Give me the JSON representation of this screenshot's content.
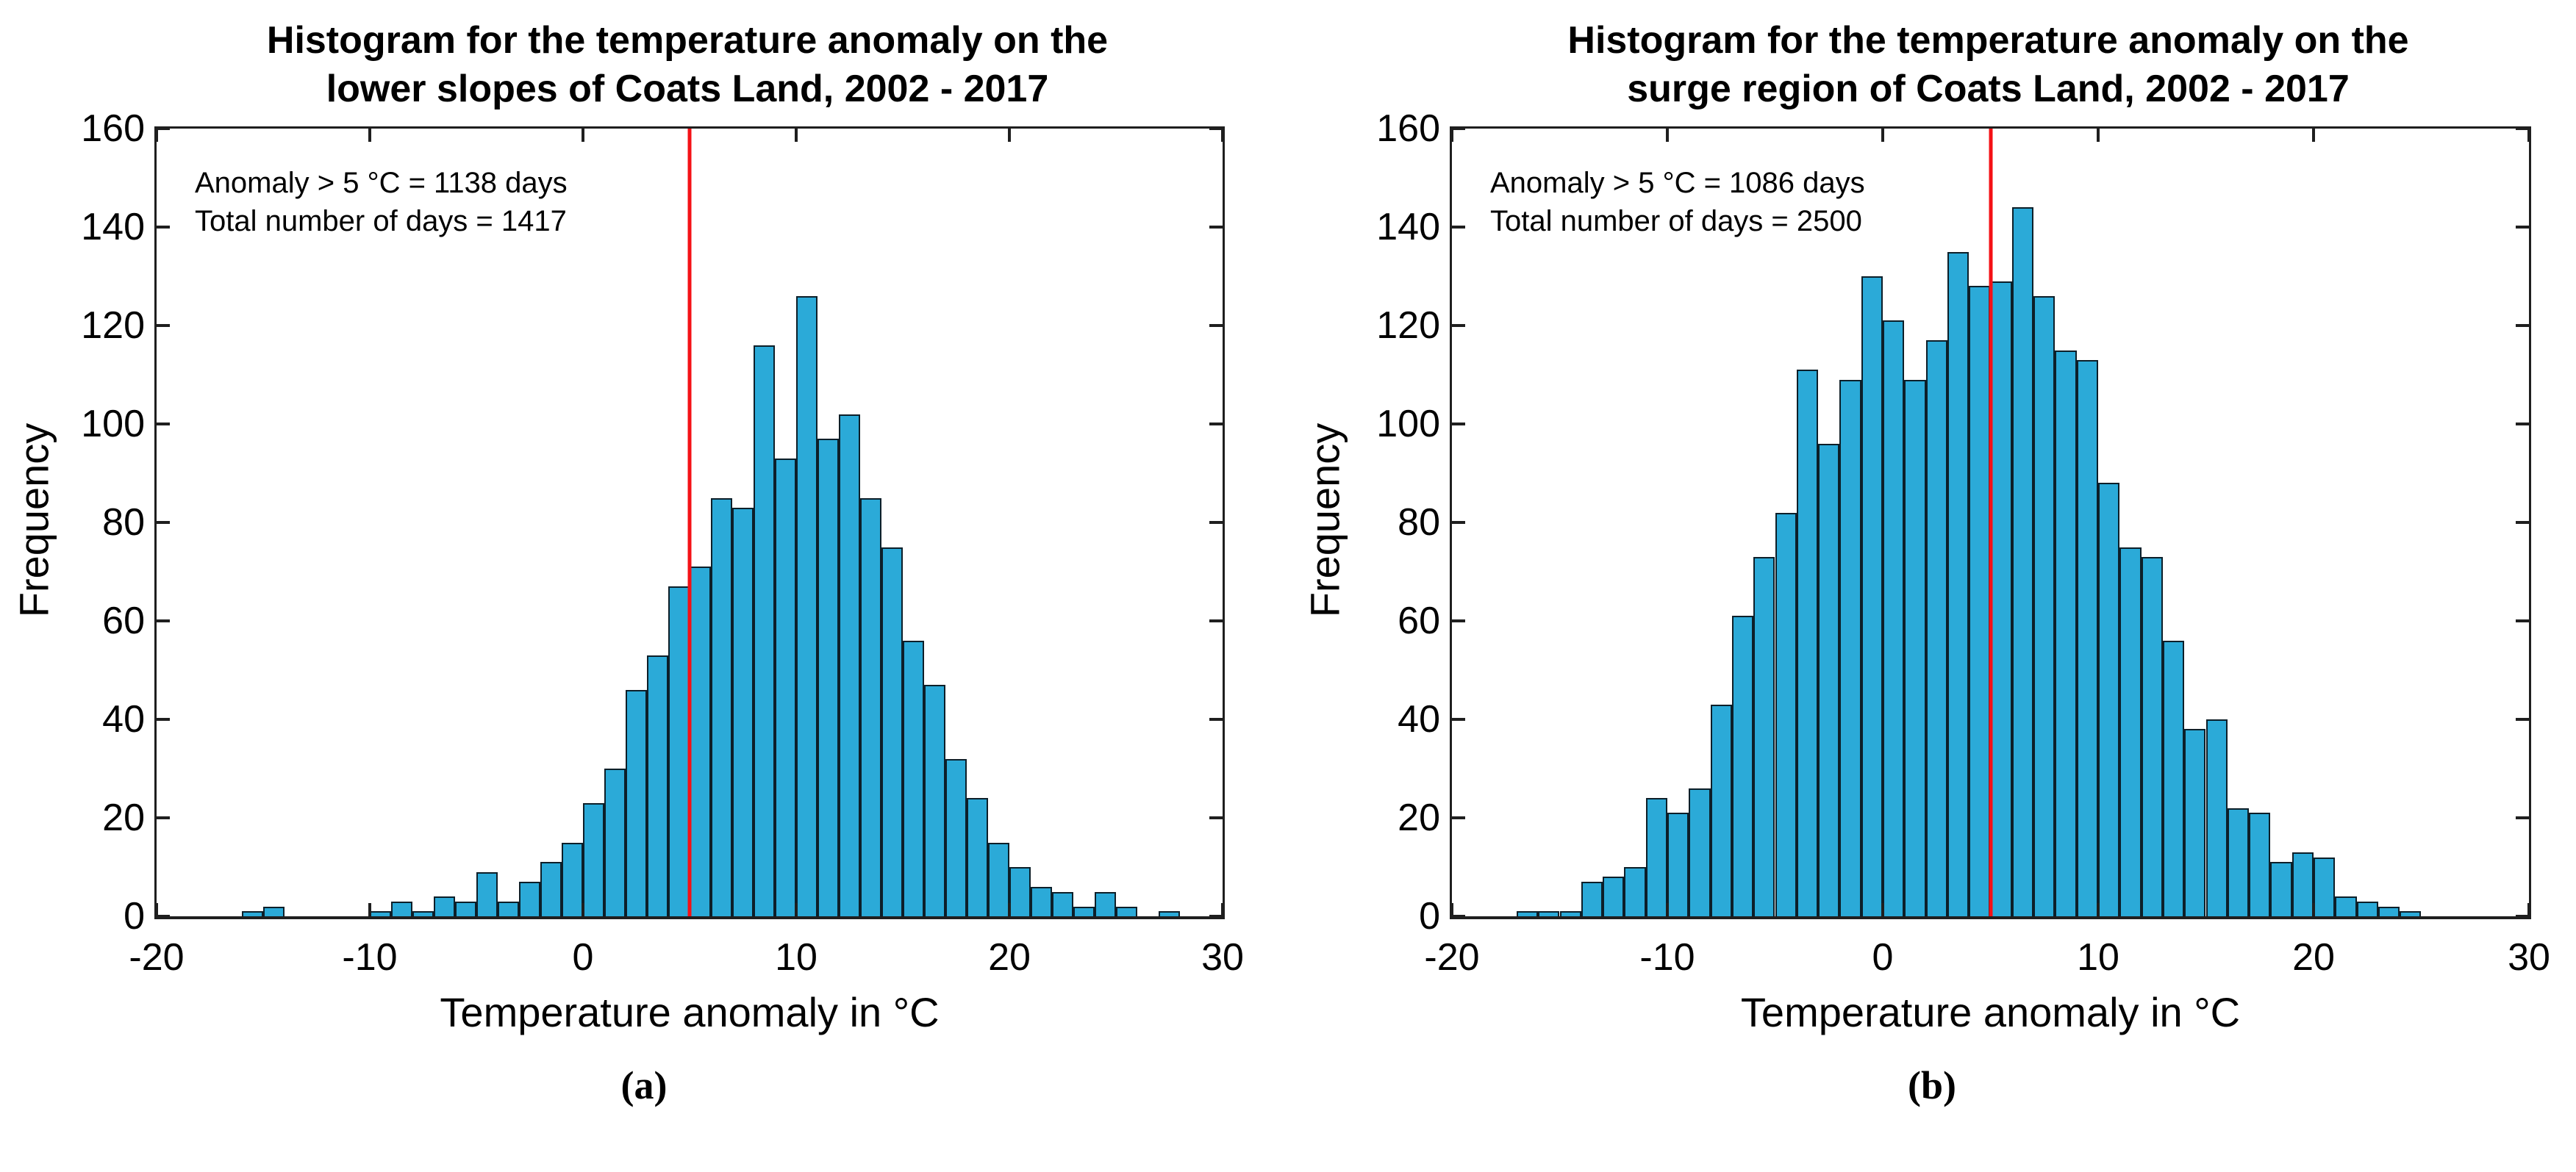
{
  "colors": {
    "bar_fill": "#2BAAD8",
    "bar_edge": "#0D1F29",
    "red_line": "#F41116",
    "axis": "#1F1F1F",
    "text": "#000000"
  },
  "captions": {
    "a": "(a)",
    "b": "(b)"
  },
  "chart_data": [
    {
      "type": "bar",
      "subtype": "histogram",
      "panel_label": "a",
      "title_line1": "Histogram for the temperature anomaly on the",
      "title_line2": "lower slopes of Coats Land, 2002 - 2017",
      "annotation_line1": "Anomaly > 5 °C = 1138 days",
      "annotation_line2": "Total number of days = 1417",
      "xlabel": "Temperature anomaly in °C",
      "ylabel": "Frequency",
      "xlim": [
        -20,
        30
      ],
      "ylim": [
        0,
        160
      ],
      "xticks": [
        -20,
        -10,
        0,
        10,
        20,
        30
      ],
      "yticks": [
        0,
        20,
        40,
        60,
        80,
        100,
        120,
        140,
        160
      ],
      "grid": false,
      "red_line_x": 5,
      "bin_width": 1,
      "first_bin_left": -16,
      "counts": [
        1,
        2,
        0,
        0,
        0,
        0,
        1,
        3,
        1,
        4,
        3,
        9,
        3,
        7,
        11,
        15,
        23,
        30,
        46,
        53,
        67,
        71,
        85,
        83,
        116,
        93,
        126,
        97,
        102,
        85,
        75,
        56,
        47,
        32,
        24,
        15,
        10,
        6,
        5,
        2,
        5,
        2,
        0,
        1
      ]
    },
    {
      "type": "bar",
      "subtype": "histogram",
      "panel_label": "b",
      "title_line1": "Histogram for the temperature anomaly on the",
      "title_line2": "surge region of Coats Land, 2002 - 2017",
      "annotation_line1": "Anomaly > 5 °C = 1086 days",
      "annotation_line2": "Total number of days = 2500",
      "xlabel": "Temperature anomaly in °C",
      "ylabel": "Frequency",
      "xlim": [
        -20,
        30
      ],
      "ylim": [
        0,
        160
      ],
      "xticks": [
        -20,
        -10,
        0,
        10,
        20,
        30
      ],
      "yticks": [
        0,
        20,
        40,
        60,
        80,
        100,
        120,
        140,
        160
      ],
      "grid": false,
      "red_line_x": 5,
      "bin_width": 1,
      "first_bin_left": -17,
      "counts": [
        1,
        1,
        1,
        7,
        8,
        10,
        24,
        21,
        26,
        43,
        61,
        73,
        82,
        111,
        96,
        109,
        130,
        121,
        109,
        117,
        135,
        128,
        129,
        144,
        126,
        115,
        113,
        88,
        75,
        73,
        56,
        38,
        40,
        22,
        21,
        11,
        13,
        12,
        4,
        3,
        2,
        1
      ]
    }
  ]
}
